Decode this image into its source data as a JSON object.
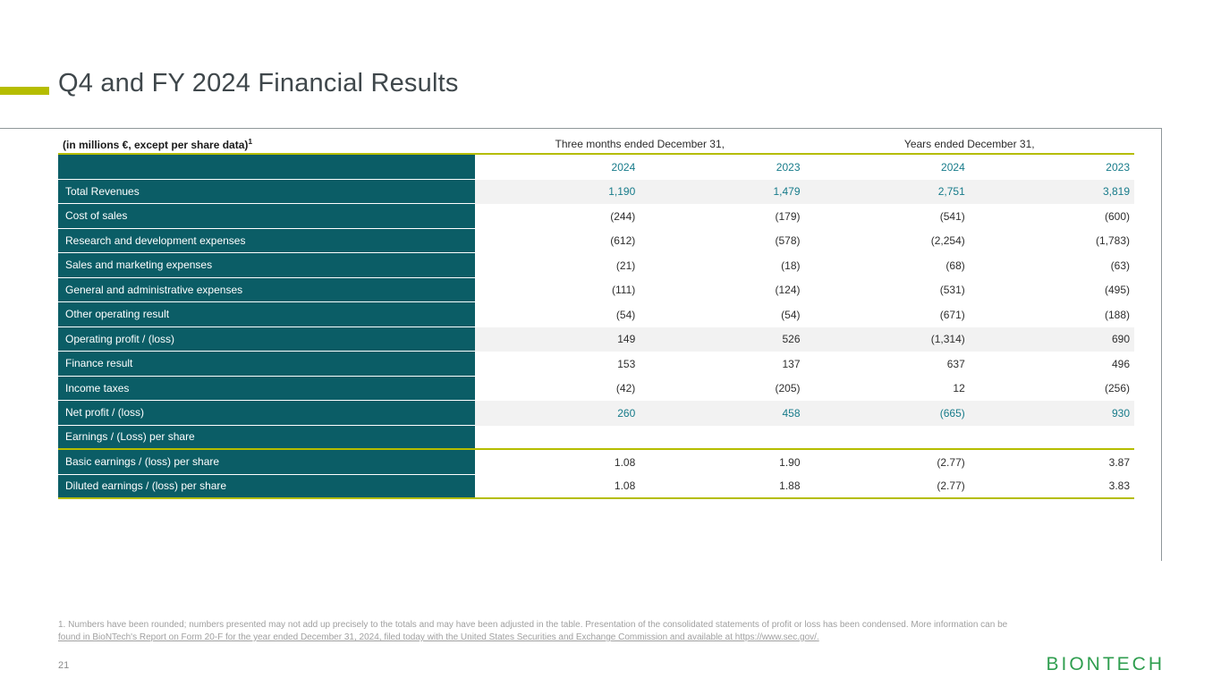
{
  "header": {
    "title": "Q4 and FY 2024 Financial Results"
  },
  "table": {
    "unit_label": "(in millions €, except per share data)",
    "unit_footnote_ref": "1",
    "group_headers": [
      {
        "label": "Three months ended December 31,"
      },
      {
        "label": "Years ended December 31,"
      }
    ],
    "rows": [
      {
        "label": "",
        "values": [
          "2024",
          "2023",
          "2024",
          "2023"
        ],
        "accent": true,
        "shade": false,
        "yellow_border": false
      },
      {
        "label": "Total Revenues",
        "values": [
          "1,190",
          "1,479",
          "2,751",
          "3,819"
        ],
        "accent": true,
        "shade": true,
        "yellow_border": false
      },
      {
        "label": "Cost of sales",
        "values": [
          "(244)",
          "(179)",
          "(541)",
          "(600)"
        ],
        "accent": false,
        "shade": false,
        "yellow_border": false
      },
      {
        "label": "Research and development expenses",
        "values": [
          "(612)",
          "(578)",
          "(2,254)",
          "(1,783)"
        ],
        "accent": false,
        "shade": false,
        "yellow_border": false
      },
      {
        "label": "Sales and marketing expenses",
        "values": [
          "(21)",
          "(18)",
          "(68)",
          "(63)"
        ],
        "accent": false,
        "shade": false,
        "yellow_border": false
      },
      {
        "label": "General and administrative expenses",
        "values": [
          "(111)",
          "(124)",
          "(531)",
          "(495)"
        ],
        "accent": false,
        "shade": false,
        "yellow_border": false
      },
      {
        "label": "Other operating result",
        "values": [
          "(54)",
          "(54)",
          "(671)",
          "(188)"
        ],
        "accent": false,
        "shade": false,
        "yellow_border": false
      },
      {
        "label": "Operating profit / (loss)",
        "values": [
          "149",
          "526",
          "(1,314)",
          "690"
        ],
        "accent": false,
        "shade": true,
        "yellow_border": false
      },
      {
        "label": "Finance result",
        "values": [
          "153",
          "137",
          "637",
          "496"
        ],
        "accent": false,
        "shade": false,
        "yellow_border": false
      },
      {
        "label": "Income taxes",
        "values": [
          "(42)",
          "(205)",
          "12",
          "(256)"
        ],
        "accent": false,
        "shade": false,
        "yellow_border": false
      },
      {
        "label": "Net profit / (loss)",
        "values": [
          "260",
          "458",
          "(665)",
          "930"
        ],
        "accent": true,
        "shade": true,
        "yellow_border": false
      },
      {
        "label": "Earnings / (Loss) per share",
        "values": [],
        "accent": false,
        "shade": false,
        "yellow_border": true
      },
      {
        "label": "Basic earnings / (loss) per share",
        "values": [
          "1.08",
          "1.90",
          "(2.77)",
          "3.87"
        ],
        "accent": false,
        "shade": false,
        "yellow_border": false
      },
      {
        "label": "Diluted earnings / (loss) per share",
        "values": [
          "1.08",
          "1.88",
          "(2.77)",
          "3.83"
        ],
        "accent": false,
        "shade": false,
        "yellow_border": true
      }
    ]
  },
  "footer": {
    "footnote_line1": "1. Numbers have been rounded; numbers presented may not add up precisely to the totals and may have been adjusted in the table. Presentation of the consolidated statements of profit or loss has been condensed. More information can be",
    "footnote_line2": "found in BioNTech's Report on Form 20-F for the year ended December 31, 2024, filed today with the United States Securities and Exchange Commission and available at https://www.sec.gov/.",
    "page_number": "21",
    "logo": "BIONTECH"
  },
  "colors": {
    "accent_green": "#b5bd00",
    "teal_dark": "#0b5d66",
    "teal_text": "#177b8a",
    "row_shade": "#f2f2f2",
    "logo_green": "#2f9e4f"
  }
}
